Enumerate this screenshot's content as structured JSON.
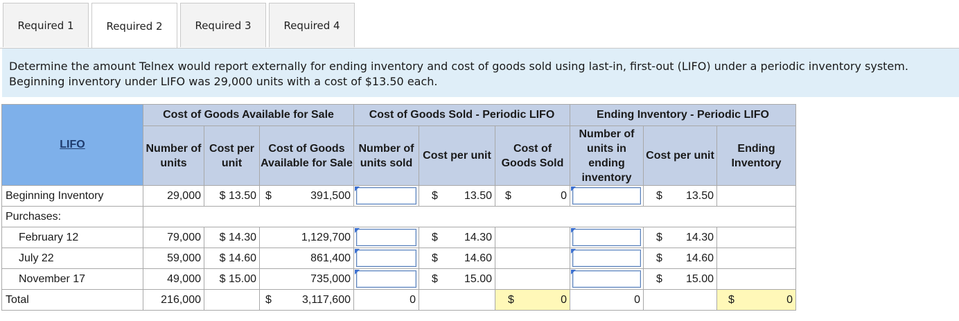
{
  "tabs": [
    {
      "label": "Required 1"
    },
    {
      "label": "Required 2"
    },
    {
      "label": "Required 3"
    },
    {
      "label": "Required 4"
    }
  ],
  "instruction": "Determine the amount Telnex would report externally for ending inventory and cost of goods sold using last-in, first-out (LIFO) under a periodic inventory system. Beginning inventory under LIFO was 29,000 units with a cost of $13.50 each.",
  "table": {
    "group_headers": {
      "available": "Cost of Goods Available for Sale",
      "cogs": "Cost of Goods Sold - Periodic LIFO",
      "ending": "Ending Inventory - Periodic LIFO"
    },
    "col_headers": {
      "lifo": "LIFO",
      "num_units": "Number of units",
      "cost_per_unit": "Cost per unit",
      "cost_available": "Cost of Goods Available for Sale",
      "units_sold": "Number of units sold",
      "cogs_cost_per_unit": "Cost per unit",
      "cost_goods_sold": "Cost of Goods Sold",
      "units_ending": "Number of units in ending inventory",
      "ei_cost_per_unit": "Cost per unit",
      "ending_inventory": "Ending Inventory"
    },
    "currency": "$",
    "rows": {
      "beginning": {
        "label": "Beginning Inventory",
        "units": "29,000",
        "cost": "$ 13.50",
        "total": "391,500",
        "cogs_cpu": "13.50",
        "cogs": "0",
        "ei_cpu": "13.50"
      },
      "purchases": {
        "label": "Purchases:"
      },
      "feb": {
        "label": "February 12",
        "units": "79,000",
        "cost": "$ 14.30",
        "total": "1,129,700",
        "cogs_cpu": "14.30",
        "ei_cpu": "14.30"
      },
      "jul": {
        "label": "July 22",
        "units": "59,000",
        "cost": "$ 14.60",
        "total": "861,400",
        "cogs_cpu": "14.60",
        "ei_cpu": "14.60"
      },
      "nov": {
        "label": "November 17",
        "units": "49,000",
        "cost": "$ 15.00",
        "total": "735,000",
        "cogs_cpu": "15.00",
        "ei_cpu": "15.00"
      },
      "total": {
        "label": "Total",
        "units": "216,000",
        "total": "3,117,600",
        "units_sold": "0",
        "cogs": "0",
        "units_ending": "0",
        "ending": "0"
      }
    }
  }
}
